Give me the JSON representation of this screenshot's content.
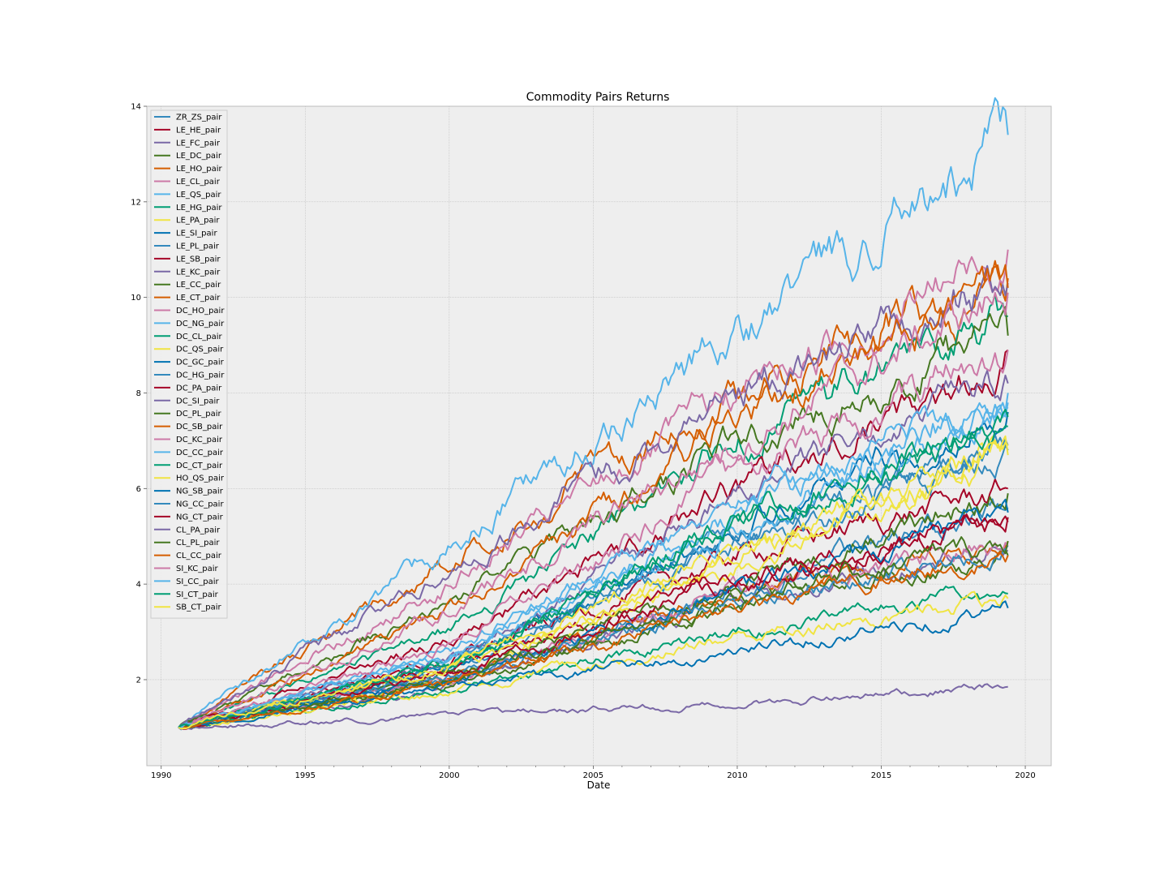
{
  "chart_data": {
    "type": "line",
    "title": "Commodity Pairs Returns",
    "xlabel": "Date",
    "ylabel": "",
    "xlim": [
      1989.5,
      2020.9
    ],
    "ylim": [
      0.2,
      14.0
    ],
    "x_ticks": [
      1990,
      1995,
      2000,
      2005,
      2010,
      2015,
      2020
    ],
    "y_ticks": [
      2,
      4,
      6,
      8,
      10,
      12,
      14
    ],
    "grid": true,
    "legend_position": "top-left",
    "background": "#eeeeee",
    "series": [
      {
        "name": "ZR_ZS_pair",
        "color": "#348ABD",
        "points": [
          [
            1990.6,
            1.0
          ],
          [
            2000,
            2.1
          ],
          [
            2010,
            3.9
          ],
          [
            2019.4,
            5.6
          ]
        ]
      },
      {
        "name": "LE_HE_pair",
        "color": "#A60628",
        "points": [
          [
            1990.6,
            1.0
          ],
          [
            2000,
            2.4
          ],
          [
            2010,
            4.6
          ],
          [
            2019.4,
            6.0
          ]
        ]
      },
      {
        "name": "LE_FC_pair",
        "color": "#7A68A6",
        "points": [
          [
            1990.6,
            1.0
          ],
          [
            2000,
            1.9
          ],
          [
            2010,
            3.7
          ],
          [
            2019.4,
            4.7
          ]
        ]
      },
      {
        "name": "LE_DC_pair",
        "color": "#467821",
        "points": [
          [
            1990.6,
            1.0
          ],
          [
            2000,
            1.9
          ],
          [
            2010,
            3.6
          ],
          [
            2019.4,
            4.6
          ]
        ]
      },
      {
        "name": "LE_HO_pair",
        "color": "#D55E00",
        "points": [
          [
            1990.6,
            1.0
          ],
          [
            2000,
            4.5
          ],
          [
            2010,
            8.0
          ],
          [
            2019.4,
            10.4
          ]
        ]
      },
      {
        "name": "LE_CL_pair",
        "color": "#CC79A7",
        "points": [
          [
            1990.6,
            1.0
          ],
          [
            2000,
            4.0
          ],
          [
            2010,
            8.0
          ],
          [
            2019.4,
            11.0
          ]
        ]
      },
      {
        "name": "LE_QS_pair",
        "color": "#56B4E9",
        "points": [
          [
            1990.6,
            1.0
          ],
          [
            2000,
            4.8
          ],
          [
            2010,
            9.2
          ],
          [
            2019.4,
            13.4
          ]
        ]
      },
      {
        "name": "LE_HG_pair",
        "color": "#009E73",
        "points": [
          [
            1990.6,
            1.0
          ],
          [
            2000,
            3.0
          ],
          [
            2010,
            7.0
          ],
          [
            2019.4,
            9.6
          ]
        ]
      },
      {
        "name": "LE_PA_pair",
        "color": "#F0E442",
        "points": [
          [
            1990.6,
            1.0
          ],
          [
            2000,
            2.0
          ],
          [
            2010,
            4.5
          ],
          [
            2019.4,
            6.8
          ]
        ]
      },
      {
        "name": "LE_SI_pair",
        "color": "#0072B2",
        "points": [
          [
            1990.6,
            1.0
          ],
          [
            2000,
            2.2
          ],
          [
            2010,
            5.3
          ],
          [
            2019.4,
            7.6
          ]
        ]
      },
      {
        "name": "LE_PL_pair",
        "color": "#348ABD",
        "points": [
          [
            1990.6,
            1.0
          ],
          [
            2000,
            2.2
          ],
          [
            2010,
            5.0
          ],
          [
            2019.4,
            6.9
          ]
        ]
      },
      {
        "name": "LE_SB_pair",
        "color": "#A60628",
        "points": [
          [
            1990.6,
            1.0
          ],
          [
            2000,
            2.8
          ],
          [
            2010,
            6.0
          ],
          [
            2019.4,
            8.9
          ]
        ]
      },
      {
        "name": "LE_KC_pair",
        "color": "#7A68A6",
        "points": [
          [
            1990.6,
            1.0
          ],
          [
            2000,
            2.4
          ],
          [
            2010,
            5.8
          ],
          [
            2019.4,
            8.2
          ]
        ]
      },
      {
        "name": "LE_CC_pair",
        "color": "#467821",
        "points": [
          [
            1990.6,
            1.0
          ],
          [
            2000,
            3.6
          ],
          [
            2010,
            7.0
          ],
          [
            2019.4,
            9.2
          ]
        ]
      },
      {
        "name": "LE_CT_pair",
        "color": "#D55E00",
        "points": [
          [
            1990.6,
            1.0
          ],
          [
            2000,
            2.0
          ],
          [
            2010,
            3.9
          ],
          [
            2019.4,
            4.9
          ]
        ]
      },
      {
        "name": "DC_HO_pair",
        "color": "#CC79A7",
        "points": [
          [
            1990.6,
            1.0
          ],
          [
            2000,
            2.0
          ],
          [
            2010,
            3.9
          ],
          [
            2019.4,
            4.8
          ]
        ]
      },
      {
        "name": "DC_NG_pair",
        "color": "#56B4E9",
        "points": [
          [
            1990.6,
            1.0
          ],
          [
            2000,
            2.6
          ],
          [
            2010,
            5.5
          ],
          [
            2019.4,
            7.8
          ]
        ]
      },
      {
        "name": "DC_CL_pair",
        "color": "#009E73",
        "points": [
          [
            1990.6,
            1.0
          ],
          [
            2000,
            1.8
          ],
          [
            2010,
            3.0
          ],
          [
            2019.4,
            3.8
          ]
        ]
      },
      {
        "name": "DC_QS_pair",
        "color": "#F0E442",
        "points": [
          [
            1990.6,
            1.0
          ],
          [
            2000,
            1.75
          ],
          [
            2010,
            2.9
          ],
          [
            2019.4,
            3.7
          ]
        ]
      },
      {
        "name": "DC_GC_pair",
        "color": "#0072B2",
        "points": [
          [
            1990.6,
            1.0
          ],
          [
            2000,
            1.85
          ],
          [
            2010,
            2.6
          ],
          [
            2019.4,
            3.5
          ]
        ]
      },
      {
        "name": "DC_HG_pair",
        "color": "#348ABD",
        "points": [
          [
            1990.6,
            1.0
          ],
          [
            2000,
            2.3
          ],
          [
            2010,
            4.8
          ],
          [
            2019.4,
            6.8
          ]
        ]
      },
      {
        "name": "DC_PA_pair",
        "color": "#A60628",
        "points": [
          [
            1990.6,
            1.0
          ],
          [
            2000,
            2.2
          ],
          [
            2010,
            4.1
          ],
          [
            2019.4,
            5.3
          ]
        ]
      },
      {
        "name": "DC_SI_pair",
        "color": "#7A68A6",
        "points": [
          [
            1990.6,
            1.0
          ],
          [
            2000,
            4.3
          ],
          [
            2010,
            8.0
          ],
          [
            2019.4,
            10.3
          ]
        ]
      },
      {
        "name": "DC_PL_pair",
        "color": "#467821",
        "points": [
          [
            1990.6,
            1.0
          ],
          [
            2000,
            2.1
          ],
          [
            2010,
            4.0
          ],
          [
            2019.4,
            5.9
          ]
        ]
      },
      {
        "name": "DC_SB_pair",
        "color": "#D55E00",
        "points": [
          [
            1990.6,
            1.0
          ],
          [
            2000,
            3.4
          ],
          [
            2010,
            7.4
          ],
          [
            2019.4,
            10.2
          ]
        ]
      },
      {
        "name": "DC_KC_pair",
        "color": "#CC79A7",
        "points": [
          [
            1990.6,
            1.0
          ],
          [
            2000,
            3.4
          ],
          [
            2010,
            7.0
          ],
          [
            2019.4,
            10.1
          ]
        ]
      },
      {
        "name": "DC_CC_pair",
        "color": "#56B4E9",
        "points": [
          [
            1990.6,
            1.0
          ],
          [
            2000,
            2.4
          ],
          [
            2010,
            5.2
          ],
          [
            2019.4,
            7.7
          ]
        ]
      },
      {
        "name": "DC_CT_pair",
        "color": "#009E73",
        "points": [
          [
            1990.6,
            1.0
          ],
          [
            2000,
            2.4
          ],
          [
            2010,
            5.3
          ],
          [
            2019.4,
            7.3
          ]
        ]
      },
      {
        "name": "HO_QS_pair",
        "color": "#F0E442",
        "points": [
          [
            1990.6,
            1.0
          ],
          [
            2000,
            2.2
          ],
          [
            2010,
            4.4
          ],
          [
            2019.4,
            6.7
          ]
        ]
      },
      {
        "name": "NG_SB_pair",
        "color": "#0072B2",
        "points": [
          [
            1990.6,
            1.0
          ],
          [
            2000,
            2.0
          ],
          [
            2010,
            3.8
          ],
          [
            2019.4,
            5.5
          ]
        ]
      },
      {
        "name": "NG_CC_pair",
        "color": "#348ABD",
        "points": [
          [
            1990.6,
            1.0
          ],
          [
            2000,
            2.1
          ],
          [
            2010,
            3.6
          ],
          [
            2019.4,
            4.8
          ]
        ]
      },
      {
        "name": "NG_CT_pair",
        "color": "#A60628",
        "points": [
          [
            1990.6,
            1.0
          ],
          [
            2000,
            2.1
          ],
          [
            2010,
            4.1
          ],
          [
            2019.4,
            5.4
          ]
        ]
      },
      {
        "name": "CL_PA_pair",
        "color": "#7A68A6",
        "points": [
          [
            1990.6,
            1.0
          ],
          [
            2000,
            1.25
          ],
          [
            2010,
            1.5
          ],
          [
            2019.4,
            1.85
          ]
        ]
      },
      {
        "name": "CL_PL_pair",
        "color": "#467821",
        "points": [
          [
            1990.6,
            1.0
          ],
          [
            2000,
            2.0
          ],
          [
            2010,
            3.7
          ],
          [
            2019.4,
            4.9
          ]
        ]
      },
      {
        "name": "CL_CC_pair",
        "color": "#D55E00",
        "points": [
          [
            1990.6,
            1.0
          ],
          [
            2000,
            1.9
          ],
          [
            2010,
            3.5
          ],
          [
            2019.4,
            4.6
          ]
        ]
      },
      {
        "name": "SI_KC_pair",
        "color": "#CC79A7",
        "points": [
          [
            1990.6,
            1.0
          ],
          [
            2000,
            2.7
          ],
          [
            2010,
            6.4
          ],
          [
            2019.4,
            8.9
          ]
        ]
      },
      {
        "name": "SI_CC_pair",
        "color": "#56B4E9",
        "points": [
          [
            1990.6,
            1.0
          ],
          [
            2000,
            2.5
          ],
          [
            2010,
            5.7
          ],
          [
            2019.4,
            8.0
          ]
        ]
      },
      {
        "name": "SI_CT_pair",
        "color": "#009E73",
        "points": [
          [
            1990.6,
            1.0
          ],
          [
            2000,
            2.3
          ],
          [
            2010,
            5.3
          ],
          [
            2019.4,
            7.5
          ]
        ]
      },
      {
        "name": "SB_CT_pair",
        "color": "#F0E442",
        "points": [
          [
            1990.6,
            1.0
          ],
          [
            2000,
            2.3
          ],
          [
            2010,
            4.7
          ],
          [
            2019.4,
            6.9
          ]
        ]
      }
    ]
  }
}
